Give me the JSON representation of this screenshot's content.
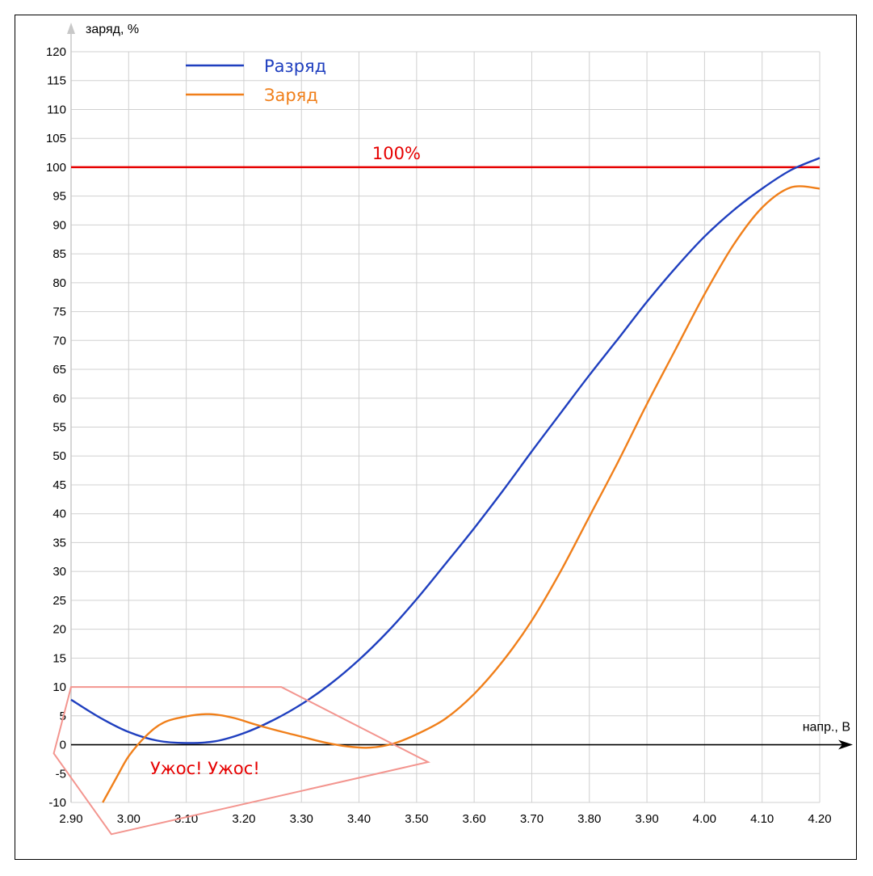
{
  "chart_data": {
    "type": "line",
    "xlabel": "напр., В",
    "ylabel": "заряд, %",
    "xlim": [
      2.9,
      4.2
    ],
    "ylim": [
      -10,
      120
    ],
    "x_ticks": [
      "2.90",
      "3.00",
      "3.10",
      "3.20",
      "3.30",
      "3.40",
      "3.50",
      "3.60",
      "3.70",
      "3.80",
      "3.90",
      "4.00",
      "4.10",
      "4.20"
    ],
    "y_ticks": [
      "120",
      "115",
      "110",
      "105",
      "100",
      "95",
      "90",
      "85",
      "80",
      "75",
      "70",
      "65",
      "60",
      "55",
      "50",
      "45",
      "40",
      "35",
      "30",
      "25",
      "20",
      "15",
      "10",
      "5",
      "0",
      "-5",
      "-10"
    ],
    "grid": true,
    "legend_position": "top-left",
    "series": [
      {
        "name": "Разряд",
        "color": "#1f3fbf",
        "x": [
          2.9,
          2.95,
          3.0,
          3.05,
          3.1,
          3.15,
          3.2,
          3.25,
          3.3,
          3.35,
          3.4,
          3.45,
          3.5,
          3.55,
          3.6,
          3.65,
          3.7,
          3.75,
          3.8,
          3.85,
          3.9,
          3.95,
          4.0,
          4.05,
          4.1,
          4.15,
          4.2
        ],
        "y": [
          7.8,
          4.7,
          2.2,
          0.7,
          0.3,
          0.6,
          2.0,
          4.2,
          7.0,
          10.5,
          14.7,
          19.6,
          25.2,
          31.3,
          37.5,
          44.0,
          50.8,
          57.4,
          64.0,
          70.3,
          76.7,
          82.6,
          88.0,
          92.5,
          96.3,
          99.5,
          101.6
        ]
      },
      {
        "name": "Заряд",
        "color": "#f07f1a",
        "x": [
          2.955,
          2.98,
          3.0,
          3.03,
          3.06,
          3.1,
          3.14,
          3.18,
          3.22,
          3.26,
          3.3,
          3.34,
          3.38,
          3.42,
          3.46,
          3.5,
          3.55,
          3.6,
          3.65,
          3.7,
          3.75,
          3.8,
          3.85,
          3.9,
          3.95,
          4.0,
          4.05,
          4.1,
          4.15,
          4.2
        ],
        "y": [
          -10,
          -5.5,
          -2.0,
          1.5,
          3.8,
          4.9,
          5.3,
          4.7,
          3.5,
          2.4,
          1.4,
          0.4,
          -0.3,
          -0.5,
          0.2,
          1.8,
          4.5,
          8.8,
          14.5,
          21.5,
          30.0,
          39.5,
          49.0,
          59.0,
          68.5,
          78.0,
          86.5,
          93.0,
          96.5,
          96.3
        ]
      }
    ],
    "reference_line": {
      "y": 100,
      "label": "100%",
      "color": "#e60000"
    },
    "annotation": {
      "text": "Ужос! Ужос!",
      "color": "#e60000",
      "outline_color": "#f3958f",
      "polygon": [
        [
          2.9,
          10
        ],
        [
          3.265,
          10
        ],
        [
          3.52,
          -3
        ],
        [
          2.97,
          -15.5
        ],
        [
          2.87,
          -1.5
        ]
      ]
    }
  }
}
